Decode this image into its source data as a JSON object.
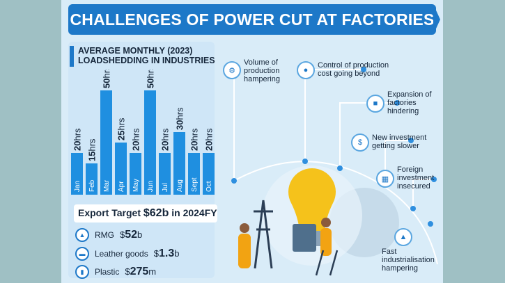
{
  "title": "CHALLENGES OF POWER CUT AT FACTORIES",
  "chart_heading": {
    "line1": "AVERAGE MONTHLY (2023)",
    "line2": "LOADSHEDDING IN INDUSTRIES"
  },
  "chart_data": {
    "type": "bar",
    "categories": [
      "Jan",
      "Feb",
      "Mar",
      "Apr",
      "May",
      "Jun",
      "Jul",
      "Aug",
      "Sept",
      "Oct"
    ],
    "values": [
      20,
      15,
      50,
      25,
      20,
      50,
      20,
      30,
      20,
      20
    ],
    "unit": "hrs",
    "colors": {
      "bar": "#1f8fe0",
      "label": "#15263a"
    }
  },
  "export": {
    "heading_prefix": "Export Target ",
    "heading_amount": "$62b",
    "heading_suffix": " in 2024FY",
    "items": [
      {
        "label": "RMG",
        "currency": "$",
        "amount": "52",
        "unit": "b",
        "icon": "shirt-icon"
      },
      {
        "label": "Leather goods",
        "currency": "$",
        "amount": "1.3",
        "unit": "b",
        "icon": "shoe-icon"
      },
      {
        "label": "Plastic",
        "currency": "$",
        "amount": "275",
        "unit": "m",
        "icon": "bottle-icon"
      }
    ]
  },
  "challenges": [
    {
      "label": "Volume of production hampering",
      "icon": "gear-icon"
    },
    {
      "label": "Control of production cost going beyond",
      "icon": "money-icon"
    },
    {
      "label": "Expansion of factories hindering",
      "icon": "factory-icon"
    },
    {
      "label": "New investment getting slower",
      "icon": "money-bag-icon"
    },
    {
      "label": "Foreign investment insecured",
      "icon": "building-icon"
    },
    {
      "label": "Fast industrialisation hampering",
      "icon": "industry-icon"
    }
  ],
  "colors": {
    "accent": "#1d78c8",
    "background": "#d9ecf8",
    "bulb": "#f5c21b"
  }
}
